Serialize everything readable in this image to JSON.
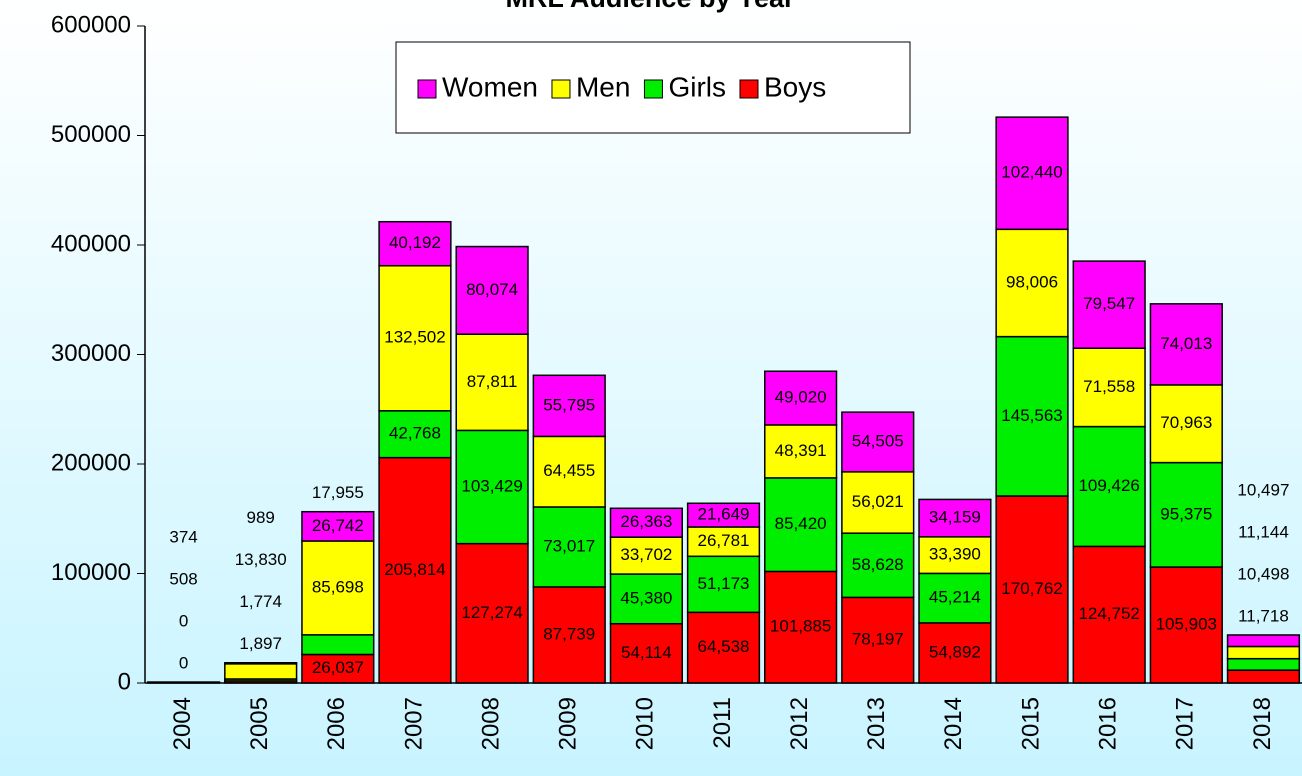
{
  "chart_data": {
    "type": "stacked_bar",
    "title": "MRL Audience by Year",
    "categories": [
      "2004",
      "2005",
      "2006",
      "2007",
      "2008",
      "2009",
      "2010",
      "2011",
      "2012",
      "2013",
      "2014",
      "2015",
      "2016",
      "2017",
      "2018"
    ],
    "series": [
      {
        "name": "Boys",
        "color": "#ff0000",
        "values": [
          0,
          1897,
          26037,
          205814,
          127274,
          87739,
          54114,
          64538,
          101885,
          78197,
          54892,
          170762,
          124752,
          105903,
          11718
        ],
        "value_labels": [
          "0",
          "1,897",
          "26,037",
          "205,814",
          "127,274",
          "87,739",
          "54,114",
          "64,538",
          "101,885",
          "78,197",
          "54,892",
          "170,762",
          "124,752",
          "105,903",
          "11,718"
        ]
      },
      {
        "name": "Girls",
        "color": "#00ee00",
        "values": [
          0,
          1774,
          17955,
          42768,
          103429,
          73017,
          45380,
          51173,
          85420,
          58628,
          45214,
          145563,
          109426,
          95375,
          10498
        ],
        "value_labels": [
          "0",
          "1,774",
          "17,955",
          "42,768",
          "103,429",
          "73,017",
          "45,380",
          "51,173",
          "85,420",
          "58,628",
          "45,214",
          "145,563",
          "109,426",
          "95,375",
          "10,498"
        ]
      },
      {
        "name": "Men",
        "color": "#ffff00",
        "values": [
          508,
          13830,
          85698,
          132502,
          87811,
          64455,
          33702,
          26781,
          48391,
          56021,
          33390,
          98006,
          71558,
          70963,
          11144
        ],
        "value_labels": [
          "508",
          "13,830",
          "85,698",
          "132,502",
          "87,811",
          "64,455",
          "33,702",
          "26,781",
          "48,391",
          "56,021",
          "33,390",
          "98,006",
          "71,558",
          "70,963",
          "11,144"
        ]
      },
      {
        "name": "Women",
        "color": "#ff00ff",
        "values": [
          374,
          989,
          26742,
          40192,
          80074,
          55795,
          26363,
          21649,
          49020,
          54505,
          34159,
          102440,
          79547,
          74013,
          10497
        ],
        "value_labels": [
          "374",
          "989",
          "26,742",
          "40,192",
          "80,074",
          "55,795",
          "26,363",
          "21,649",
          "49,020",
          "54,505",
          "34,159",
          "102,440",
          "79,547",
          "74,013",
          "10,497"
        ]
      }
    ],
    "ylim": [
      0,
      600000
    ],
    "yticks": [
      0,
      100000,
      200000,
      300000,
      400000,
      500000,
      600000
    ],
    "legend": "top"
  }
}
